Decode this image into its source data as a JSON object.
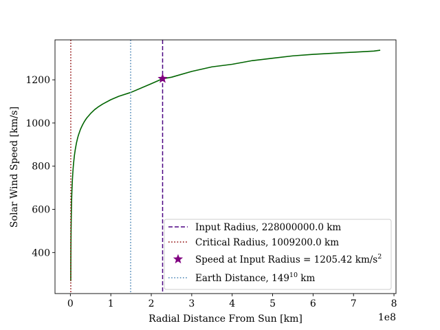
{
  "chart_data": {
    "type": "line",
    "xlabel": "Radial Distance From Sun [km]",
    "ylabel": "Solar Wind Speed [km/s]",
    "x_offset_label": "1e8",
    "xlim": [
      -0.38,
      8.05
    ],
    "ylim": [
      210,
      1385
    ],
    "x_ticks": [
      0,
      1,
      2,
      3,
      4,
      5,
      6,
      7,
      8
    ],
    "x_tick_labels": [
      "0",
      "1",
      "2",
      "3",
      "4",
      "5",
      "6",
      "7",
      "8"
    ],
    "y_ticks": [
      400,
      600,
      800,
      1000,
      1200
    ],
    "y_tick_labels": [
      "400",
      "600",
      "800",
      "1000",
      "1200"
    ],
    "grid": false,
    "legend_position": "lower-right",
    "series": [
      {
        "kind": "line",
        "color": "#006400",
        "style": "solid",
        "x": [
          0.010092,
          0.0101,
          0.0105,
          0.011,
          0.012,
          0.0135,
          0.015,
          0.0175,
          0.02,
          0.025,
          0.03,
          0.035,
          0.04,
          0.05,
          0.06,
          0.07,
          0.08,
          0.1,
          0.12,
          0.15,
          0.18,
          0.2,
          0.25,
          0.3,
          0.35,
          0.4,
          0.5,
          0.6,
          0.7,
          0.8,
          1.0,
          1.2,
          1.5,
          2.0,
          2.28,
          2.5,
          3.0,
          3.5,
          4.0,
          4.5,
          5.0,
          5.5,
          6.0,
          6.5,
          7.0,
          7.5,
          7.66
        ],
        "y": [
          268,
          286,
          322,
          348,
          384,
          425,
          458,
          503,
          539,
          595,
          636,
          668,
          695,
          736,
          768,
          794,
          815,
          850,
          876,
          907,
          931,
          944,
          971,
          991,
          1008,
          1022,
          1044,
          1062,
          1076,
          1088,
          1108,
          1124,
          1142,
          1182,
          1205,
          1212,
          1239,
          1260,
          1272,
          1289,
          1300,
          1311,
          1318,
          1323,
          1328,
          1333,
          1337
        ]
      },
      {
        "kind": "vline",
        "label": "Input Radius, 228000000.0 km",
        "x": 2.28,
        "color": "#4b0082",
        "style": "dashed"
      },
      {
        "kind": "vline",
        "label": "Critical Radius, 1009200.0 km",
        "x": 0.010092,
        "color": "#8b0000",
        "style": "dotted"
      },
      {
        "kind": "point",
        "label_main": "Speed at Input Radius = 1205.42 km/s",
        "label_sup": "2",
        "x": 2.28,
        "y": 1205.42,
        "color": "#800080",
        "marker": "star"
      },
      {
        "kind": "vline",
        "label_main": "Earth Distance, 149",
        "label_sup": "10",
        "label_tail": " km",
        "x": 1.49,
        "color": "#4682b4",
        "style": "dotted"
      }
    ]
  }
}
